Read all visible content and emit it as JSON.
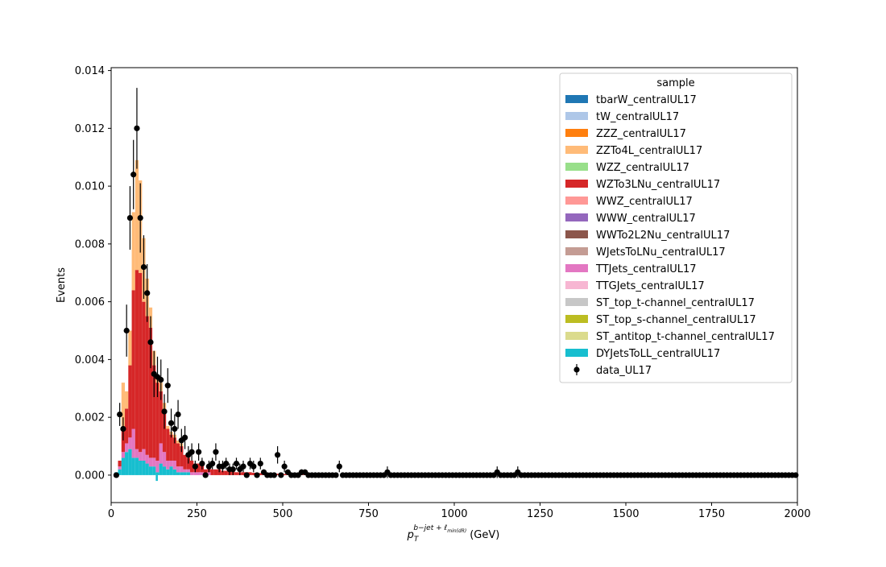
{
  "chart_data": {
    "type": "bar",
    "title": "",
    "xlabel_main": "p",
    "xlabel_sub": "T",
    "xlabel_sup": "b−jet + ℓ",
    "xlabel_sup_sub": "min(dR)",
    "xlabel_unit": "(GeV)",
    "ylabel": "Events",
    "xlim": [
      0,
      2000
    ],
    "ylim": [
      -0.00095,
      0.0141
    ],
    "xticks": [
      0,
      250,
      500,
      750,
      1000,
      1250,
      1500,
      1750,
      2000
    ],
    "xtick_labels": [
      "0",
      "250",
      "500",
      "750",
      "1000",
      "1250",
      "1500",
      "1750",
      "2000"
    ],
    "yticks": [
      0.0,
      0.002,
      0.004,
      0.006,
      0.008,
      0.01,
      0.012,
      0.014
    ],
    "ytick_labels": [
      "0.000",
      "0.002",
      "0.004",
      "0.006",
      "0.008",
      "0.010",
      "0.012",
      "0.014"
    ],
    "grid": false,
    "bin_width": 10,
    "legend": {
      "title": "sample",
      "placement": "top-right",
      "entries": [
        {
          "name": "tbarW_centralUL17",
          "color": "#1f77b4"
        },
        {
          "name": "tW_centralUL17",
          "color": "#aec7e8"
        },
        {
          "name": "ZZZ_centralUL17",
          "color": "#ff7f0e"
        },
        {
          "name": "ZZTo4L_centralUL17",
          "color": "#ffbb78"
        },
        {
          "name": "WZZ_centralUL17",
          "color": "#98df8a"
        },
        {
          "name": "WZTo3LNu_centralUL17",
          "color": "#d62728"
        },
        {
          "name": "WWZ_centralUL17",
          "color": "#ff9896"
        },
        {
          "name": "WWW_centralUL17",
          "color": "#9467bd"
        },
        {
          "name": "WWTo2L2Nu_centralUL17",
          "color": "#8c564b"
        },
        {
          "name": "WJetsToLNu_centralUL17",
          "color": "#c49c94"
        },
        {
          "name": "TTJets_centralUL17",
          "color": "#e377c2"
        },
        {
          "name": "TTGJets_centralUL17",
          "color": "#f7b6d2"
        },
        {
          "name": "ST_top_t-channel_centralUL17",
          "color": "#c7c7c7"
        },
        {
          "name": "ST_top_s-channel_centralUL17",
          "color": "#bcbd22"
        },
        {
          "name": "ST_antitop_t-channel_centralUL17",
          "color": "#dbdb8d"
        },
        {
          "name": "DYJetsToLL_centralUL17",
          "color": "#17becf"
        }
      ],
      "data_entry": "data_UL17"
    },
    "stack": [
      {
        "x": 10,
        "dy": 0.0001,
        "tt": 0.0,
        "wz": 0.0,
        "zz": 0.0
      },
      {
        "x": 20,
        "dy": 0.0002,
        "tt": 0.0001,
        "wz": 0.0002,
        "zz": 0.0
      },
      {
        "x": 30,
        "dy": 0.0006,
        "tt": 0.0002,
        "wz": 0.0008,
        "zz": 0.0016
      },
      {
        "x": 40,
        "dy": 0.0008,
        "tt": 0.0003,
        "wz": 0.0012,
        "zz": 0.0006
      },
      {
        "x": 50,
        "dy": 0.0009,
        "tt": 0.0004,
        "wz": 0.0025,
        "zz": 0.0012
      },
      {
        "x": 60,
        "dy": 0.0006,
        "tt": 0.001,
        "wz": 0.0048,
        "zz": 0.0027
      },
      {
        "x": 70,
        "dy": 0.0006,
        "tt": 0.0003,
        "wz": 0.0062,
        "zz": 0.0038
      },
      {
        "x": 80,
        "dy": 0.0005,
        "tt": 0.0003,
        "wz": 0.0062,
        "zz": 0.0032
      },
      {
        "x": 90,
        "dy": 0.0005,
        "tt": 0.0004,
        "wz": 0.0051,
        "zz": 0.0022
      },
      {
        "x": 100,
        "dy": 0.0004,
        "tt": 0.0003,
        "wz": 0.0048,
        "zz": 0.0013
      },
      {
        "x": 110,
        "dy": 0.0003,
        "tt": 0.0003,
        "wz": 0.0045,
        "zz": 0.0007
      },
      {
        "x": 120,
        "dy": 0.0003,
        "tt": 0.0003,
        "wz": 0.0032,
        "zz": 0.0005
      },
      {
        "x": 130,
        "dy": 0.0001,
        "tt": 0.0004,
        "wz": 0.0027,
        "zz": 0.0002
      },
      {
        "x": 140,
        "dy": 0.0004,
        "tt": 0.0007,
        "wz": 0.0018,
        "zz": 0.0003
      },
      {
        "x": 150,
        "dy": 0.0003,
        "tt": 0.0005,
        "wz": 0.0015,
        "zz": 0.0002
      },
      {
        "x": 160,
        "dy": 0.0002,
        "tt": 0.0003,
        "wz": 0.0011,
        "zz": 0.0001
      },
      {
        "x": 170,
        "dy": 0.0003,
        "tt": 0.0002,
        "wz": 0.0009,
        "zz": 0.0001
      },
      {
        "x": 180,
        "dy": 0.0002,
        "tt": 0.0003,
        "wz": 0.0008,
        "zz": 0.0001
      },
      {
        "x": 190,
        "dy": 0.0001,
        "tt": 0.0002,
        "wz": 0.0008,
        "zz": 0.0001
      },
      {
        "x": 200,
        "dy": 0.0001,
        "tt": 0.0002,
        "wz": 0.0007,
        "zz": 0.0001
      },
      {
        "x": 210,
        "dy": 0.0001,
        "tt": 0.0001,
        "wz": 0.0005,
        "zz": 0.0
      },
      {
        "x": 220,
        "dy": 0.0001,
        "tt": 0.0001,
        "wz": 0.0004,
        "zz": 0.0
      },
      {
        "x": 230,
        "dy": 0.0,
        "tt": 0.0001,
        "wz": 0.0004,
        "zz": 0.0
      },
      {
        "x": 240,
        "dy": 0.0,
        "tt": 0.0001,
        "wz": 0.0003,
        "zz": 0.0
      },
      {
        "x": 250,
        "dy": 0.0,
        "tt": 0.0001,
        "wz": 0.0003,
        "zz": 0.0
      },
      {
        "x": 260,
        "dy": 0.0,
        "tt": 0.0001,
        "wz": 0.0003,
        "zz": 0.0
      },
      {
        "x": 270,
        "dy": 0.0,
        "tt": 0.0,
        "wz": 0.0002,
        "zz": 0.0
      },
      {
        "x": 280,
        "dy": 0.0,
        "tt": 0.0001,
        "wz": 0.0002,
        "zz": 0.0
      },
      {
        "x": 290,
        "dy": 0.0,
        "tt": 0.0,
        "wz": 0.0002,
        "zz": 0.0
      },
      {
        "x": 300,
        "dy": 0.0,
        "tt": 0.0,
        "wz": 0.0002,
        "zz": 0.0
      },
      {
        "x": 310,
        "dy": 0.0,
        "tt": 0.0,
        "wz": 0.0002,
        "zz": 0.0
      },
      {
        "x": 320,
        "dy": 0.0,
        "tt": 0.0,
        "wz": 0.00015,
        "zz": 0.0
      },
      {
        "x": 330,
        "dy": 0.0,
        "tt": 0.0,
        "wz": 0.00015,
        "zz": 0.0
      },
      {
        "x": 340,
        "dy": 0.0,
        "tt": 0.0,
        "wz": 0.00012,
        "zz": 0.0
      },
      {
        "x": 350,
        "dy": 0.0,
        "tt": 0.0,
        "wz": 0.00012,
        "zz": 0.0
      },
      {
        "x": 360,
        "dy": 0.0,
        "tt": 0.0,
        "wz": 0.0001,
        "zz": 0.0
      },
      {
        "x": 370,
        "dy": 0.0,
        "tt": 0.0,
        "wz": 0.0001,
        "zz": 0.0
      },
      {
        "x": 380,
        "dy": 0.0,
        "tt": 0.0,
        "wz": 0.0001,
        "zz": 0.0
      },
      {
        "x": 390,
        "dy": 0.0,
        "tt": 0.0,
        "wz": 0.0001,
        "zz": 0.0
      },
      {
        "x": 400,
        "dy": 0.0,
        "tt": 0.0,
        "wz": 0.0001,
        "zz": 0.0
      },
      {
        "x": 410,
        "dy": 0.0,
        "tt": 0.0,
        "wz": 8e-05,
        "zz": 0.0
      },
      {
        "x": 420,
        "dy": 0.0,
        "tt": 0.0,
        "wz": 8e-05,
        "zz": 0.0
      },
      {
        "x": 430,
        "dy": 0.0,
        "tt": 0.0,
        "wz": 7e-05,
        "zz": 0.0
      },
      {
        "x": 440,
        "dy": 0.0,
        "tt": 0.0,
        "wz": 7e-05,
        "zz": 0.0
      },
      {
        "x": 450,
        "dy": 0.0,
        "tt": 0.0,
        "wz": 6e-05,
        "zz": 0.0
      },
      {
        "x": 460,
        "dy": 0.0,
        "tt": 0.0,
        "wz": 6e-05,
        "zz": 0.0
      },
      {
        "x": 470,
        "dy": 0.0,
        "tt": 0.0,
        "wz": 5e-05,
        "zz": 0.0
      },
      {
        "x": 480,
        "dy": 0.0,
        "tt": 0.0,
        "wz": 5e-05,
        "zz": 0.0
      },
      {
        "x": 490,
        "dy": 0.0,
        "tt": 0.0,
        "wz": 4e-05,
        "zz": 0.0
      },
      {
        "x": 500,
        "dy": 0.0,
        "tt": 0.0,
        "wz": 4e-05,
        "zz": 0.0
      },
      {
        "x": 510,
        "dy": 0.0,
        "tt": 0.0,
        "wz": 3e-05,
        "zz": 0.0
      },
      {
        "x": 520,
        "dy": 0.0,
        "tt": 0.0,
        "wz": 3e-05,
        "zz": 0.0
      },
      {
        "x": 530,
        "dy": 0.0,
        "tt": 0.0,
        "wz": 3e-05,
        "zz": 0.0
      },
      {
        "x": 540,
        "dy": 0.0,
        "tt": 0.0,
        "wz": 2e-05,
        "zz": 0.0
      },
      {
        "x": 550,
        "dy": 0.0,
        "tt": 0.0,
        "wz": 2e-05,
        "zz": 0.0
      },
      {
        "x": 560,
        "dy": 0.0,
        "tt": 0.0,
        "wz": 2e-05,
        "zz": 0.0
      },
      {
        "x": 570,
        "dy": 0.0,
        "tt": 0.0,
        "wz": 2e-05,
        "zz": 0.0
      },
      {
        "x": 580,
        "dy": 0.0,
        "tt": 0.0,
        "wz": 1e-05,
        "zz": 0.0
      },
      {
        "x": 590,
        "dy": 0.0,
        "tt": 0.0,
        "wz": 1e-05,
        "zz": 0.0
      },
      {
        "x": 600,
        "dy": 0.0,
        "tt": 0.0,
        "wz": 1e-05,
        "zz": 0.0
      }
    ],
    "dy_dip": {
      "x": 130,
      "value": -0.0002
    },
    "data_points": [
      {
        "x": 15,
        "y": 0.0,
        "err": 0.0
      },
      {
        "x": 25,
        "y": 0.0021,
        "err": 0.0004
      },
      {
        "x": 35,
        "y": 0.0016,
        "err": 0.0004
      },
      {
        "x": 45,
        "y": 0.005,
        "err": 0.0009
      },
      {
        "x": 55,
        "y": 0.0089,
        "err": 0.0011
      },
      {
        "x": 65,
        "y": 0.0104,
        "err": 0.0012
      },
      {
        "x": 75,
        "y": 0.012,
        "err": 0.0014
      },
      {
        "x": 85,
        "y": 0.0089,
        "err": 0.0012
      },
      {
        "x": 95,
        "y": 0.0072,
        "err": 0.0011
      },
      {
        "x": 105,
        "y": 0.0063,
        "err": 0.001
      },
      {
        "x": 115,
        "y": 0.0046,
        "err": 0.0009
      },
      {
        "x": 125,
        "y": 0.0035,
        "err": 0.0008
      },
      {
        "x": 135,
        "y": 0.0034,
        "err": 0.0007
      },
      {
        "x": 145,
        "y": 0.0033,
        "err": 0.0007
      },
      {
        "x": 155,
        "y": 0.0022,
        "err": 0.0006
      },
      {
        "x": 165,
        "y": 0.0031,
        "err": 0.0006
      },
      {
        "x": 175,
        "y": 0.0018,
        "err": 0.0005
      },
      {
        "x": 185,
        "y": 0.0016,
        "err": 0.0005
      },
      {
        "x": 195,
        "y": 0.0021,
        "err": 0.0005
      },
      {
        "x": 205,
        "y": 0.0012,
        "err": 0.0004
      },
      {
        "x": 215,
        "y": 0.0013,
        "err": 0.0004
      },
      {
        "x": 225,
        "y": 0.0007,
        "err": 0.0003
      },
      {
        "x": 235,
        "y": 0.0008,
        "err": 0.0003
      },
      {
        "x": 245,
        "y": 0.0003,
        "err": 0.0002
      },
      {
        "x": 255,
        "y": 0.0008,
        "err": 0.0003
      },
      {
        "x": 265,
        "y": 0.0004,
        "err": 0.0002
      },
      {
        "x": 275,
        "y": 0.0,
        "err": 0.0
      },
      {
        "x": 285,
        "y": 0.0003,
        "err": 0.0002
      },
      {
        "x": 295,
        "y": 0.0004,
        "err": 0.0002
      },
      {
        "x": 305,
        "y": 0.0008,
        "err": 0.0003
      },
      {
        "x": 315,
        "y": 0.0003,
        "err": 0.0002
      },
      {
        "x": 325,
        "y": 0.0003,
        "err": 0.0002
      },
      {
        "x": 335,
        "y": 0.0004,
        "err": 0.0002
      },
      {
        "x": 345,
        "y": 0.0002,
        "err": 0.0002
      },
      {
        "x": 355,
        "y": 0.0002,
        "err": 0.0002
      },
      {
        "x": 365,
        "y": 0.0004,
        "err": 0.0002
      },
      {
        "x": 375,
        "y": 0.0002,
        "err": 0.0002
      },
      {
        "x": 385,
        "y": 0.0003,
        "err": 0.0002
      },
      {
        "x": 395,
        "y": 0.0,
        "err": 0.0
      },
      {
        "x": 405,
        "y": 0.0004,
        "err": 0.0002
      },
      {
        "x": 415,
        "y": 0.0003,
        "err": 0.0002
      },
      {
        "x": 425,
        "y": 0.0,
        "err": 0.0
      },
      {
        "x": 435,
        "y": 0.0004,
        "err": 0.0002
      },
      {
        "x": 445,
        "y": 0.0001,
        "err": 0.0001
      },
      {
        "x": 455,
        "y": 0.0,
        "err": 0.0
      },
      {
        "x": 465,
        "y": 0.0,
        "err": 0.0
      },
      {
        "x": 475,
        "y": 0.0,
        "err": 0.0
      },
      {
        "x": 485,
        "y": 0.0007,
        "err": 0.0003
      },
      {
        "x": 495,
        "y": 0.0,
        "err": 0.0
      },
      {
        "x": 505,
        "y": 0.0003,
        "err": 0.0002
      },
      {
        "x": 515,
        "y": 0.0001,
        "err": 0.0001
      },
      {
        "x": 525,
        "y": 0.0,
        "err": 0.0
      },
      {
        "x": 535,
        "y": 0.0,
        "err": 0.0
      },
      {
        "x": 545,
        "y": 0.0,
        "err": 0.0
      },
      {
        "x": 555,
        "y": 0.0001,
        "err": 0.0001
      },
      {
        "x": 565,
        "y": 0.0001,
        "err": 0.0001
      },
      {
        "x": 665,
        "y": 0.0003,
        "err": 0.0002
      },
      {
        "x": 805,
        "y": 0.0001,
        "err": 0.0002
      },
      {
        "x": 1125,
        "y": 0.0001,
        "err": 0.0002
      },
      {
        "x": 1185,
        "y": 0.0001,
        "err": 0.0002
      }
    ],
    "zero_point_range": [
      575,
      1995
    ],
    "data_color": "#000000"
  }
}
